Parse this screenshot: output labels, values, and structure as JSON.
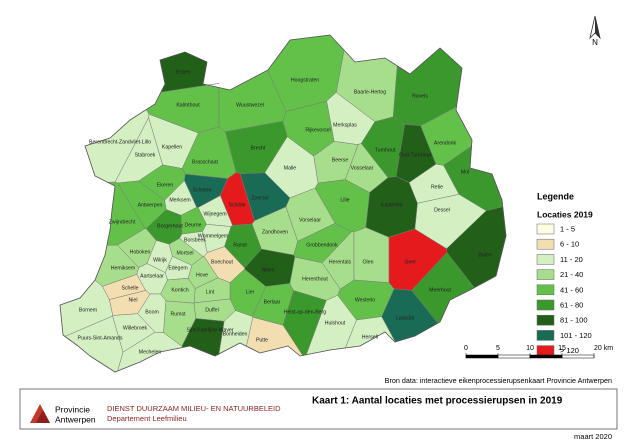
{
  "north": "N",
  "legend": {
    "title": "Legende",
    "subtitle": "Locaties 2019",
    "items": [
      {
        "label": "1 - 5",
        "color": "#fdfde2"
      },
      {
        "label": "6 - 10",
        "color": "#f3deb2"
      },
      {
        "label": "11 - 20",
        "color": "#d4efc2"
      },
      {
        "label": "21 - 40",
        "color": "#a7de8b"
      },
      {
        "label": "41 - 60",
        "color": "#63c14a"
      },
      {
        "label": "61 - 80",
        "color": "#3b982d"
      },
      {
        "label": "81 - 100",
        "color": "#22601a"
      },
      {
        "label": "101 - 120",
        "color": "#1a6b56"
      },
      {
        "label": "> 120",
        "color": "#e41a1c"
      }
    ]
  },
  "scale_bar": {
    "ticks": [
      0,
      5,
      10,
      15,
      {
        "value": 20,
        "label": "20 km"
      }
    ]
  },
  "source": "Bron data: interactieve eikenprocessierupsenkaart Provincie Antwerpen",
  "footer": {
    "logo_line1": "Provincie",
    "logo_line2": "Antwerpen",
    "department": "DIENST DUURZAAM MILIEU- EN NATUURBELEID",
    "division": "Departement Leefmilieu",
    "title": "Kaart 1: Aantal locaties met processierupsen in 2019",
    "date": "maart 2020"
  },
  "regions": [
    {
      "name": "Essen",
      "color": "#22601a"
    },
    {
      "name": "Kalmthout",
      "color": "#63c14a"
    },
    {
      "name": "Wuustwezel",
      "color": "#63c14a"
    },
    {
      "name": "Hoogstraten",
      "color": "#63c14a"
    },
    {
      "name": "Baarle-Hertog",
      "color": "#a7de8b"
    },
    {
      "name": "Ravels",
      "color": "#3b982d"
    },
    {
      "name": "Merksplas",
      "color": "#d4efc2"
    },
    {
      "name": "Rijkevorsel",
      "color": "#63c14a"
    },
    {
      "name": "Brecht",
      "color": "#3b982d"
    },
    {
      "name": "Beerse",
      "color": "#a7de8b"
    },
    {
      "name": "Vosselaar",
      "color": "#a7de8b"
    },
    {
      "name": "Turnhout",
      "color": "#3b982d"
    },
    {
      "name": "Oud-Turnhout",
      "color": "#22601a"
    },
    {
      "name": "Arendonk",
      "color": "#63c14a"
    },
    {
      "name": "Mol",
      "color": "#3b982d"
    },
    {
      "name": "Retie",
      "color": "#d4efc2"
    },
    {
      "name": "Dessel",
      "color": "#d4efc2"
    },
    {
      "name": "Kasterlee",
      "color": "#22601a"
    },
    {
      "name": "Lille",
      "color": "#63c14a"
    },
    {
      "name": "Malle",
      "color": "#d4efc2"
    },
    {
      "name": "Zoersel",
      "color": "#1a6b56"
    },
    {
      "name": "Schilde",
      "color": "#e41a1c"
    },
    {
      "name": "Brasschaat",
      "color": "#63c14a"
    },
    {
      "name": "Kapellen",
      "color": "#d4efc2"
    },
    {
      "name": "Stabroek",
      "color": "#d4efc2"
    },
    {
      "name": "Berendrecht-Zandvliet-Lillo",
      "color": "#d4efc2"
    },
    {
      "name": "Ekeren",
      "color": "#63c14a"
    },
    {
      "name": "Schoten",
      "color": "#1a6b56"
    },
    {
      "name": "Merksem",
      "color": "#d4efc2"
    },
    {
      "name": "Antwerpen",
      "color": "#63c14a"
    },
    {
      "name": "Zwijndrecht",
      "color": "#63c14a"
    },
    {
      "name": "Wijnegem",
      "color": "#d4efc2"
    },
    {
      "name": "Borgerhout",
      "color": "#3b982d"
    },
    {
      "name": "Deurne",
      "color": "#63c14a"
    },
    {
      "name": "Wommelgem",
      "color": "#d4efc2"
    },
    {
      "name": "Ranst",
      "color": "#3b982d"
    },
    {
      "name": "Zandhoven",
      "color": "#a7de8b"
    },
    {
      "name": "Vorselaar",
      "color": "#a7de8b"
    },
    {
      "name": "Herentals",
      "color": "#a7de8b"
    },
    {
      "name": "Grobbendonk",
      "color": "#63c14a"
    },
    {
      "name": "Olen",
      "color": "#a7de8b"
    },
    {
      "name": "Geel",
      "color": "#e41a1c"
    },
    {
      "name": "Balen",
      "color": "#22601a"
    },
    {
      "name": "Meerhout",
      "color": "#3b982d"
    },
    {
      "name": "Laakdal",
      "color": "#1a6b56"
    },
    {
      "name": "Westerlo",
      "color": "#63c14a"
    },
    {
      "name": "Herenthout",
      "color": "#a7de8b"
    },
    {
      "name": "Herselt",
      "color": "#d4efc2"
    },
    {
      "name": "Heist-op-den-Berg",
      "color": "#3b982d"
    },
    {
      "name": "Nijlen",
      "color": "#22601a"
    },
    {
      "name": "Berlaar",
      "color": "#63c14a"
    },
    {
      "name": "Lier",
      "color": "#63c14a"
    },
    {
      "name": "Boechout",
      "color": "#f3deb2"
    },
    {
      "name": "Borsbeek",
      "color": "#d4efc2"
    },
    {
      "name": "Mortsel",
      "color": "#a7de8b"
    },
    {
      "name": "Hove",
      "color": "#a7de8b"
    },
    {
      "name": "Edegem",
      "color": "#d4efc2"
    },
    {
      "name": "Kontich",
      "color": "#a7de8b"
    },
    {
      "name": "Lint",
      "color": "#a7de8b"
    },
    {
      "name": "Hemiksem",
      "color": "#a7de8b"
    },
    {
      "name": "Aartselaar",
      "color": "#d4efc2"
    },
    {
      "name": "Hoboken",
      "color": "#a7de8b"
    },
    {
      "name": "Wilrijk",
      "color": "#d4efc2"
    },
    {
      "name": "Schelle",
      "color": "#f3deb2"
    },
    {
      "name": "Niel",
      "color": "#f3deb2"
    },
    {
      "name": "Boom",
      "color": "#d4efc2"
    },
    {
      "name": "Rumst",
      "color": "#a7de8b"
    },
    {
      "name": "Duffel",
      "color": "#a7de8b"
    },
    {
      "name": "Bornem",
      "color": "#d4efc2"
    },
    {
      "name": "Puurs-Sint-Amands",
      "color": "#d4efc2"
    },
    {
      "name": "Willebroek",
      "color": "#d4efc2"
    },
    {
      "name": "Sint-Katelijne-Waver",
      "color": "#22601a"
    },
    {
      "name": "Mechelen",
      "color": "#d4efc2"
    },
    {
      "name": "Bonheiden",
      "color": "#d4efc2"
    },
    {
      "name": "Putte",
      "color": "#f3deb2"
    },
    {
      "name": "Hulshout",
      "color": "#d4efc2"
    }
  ]
}
